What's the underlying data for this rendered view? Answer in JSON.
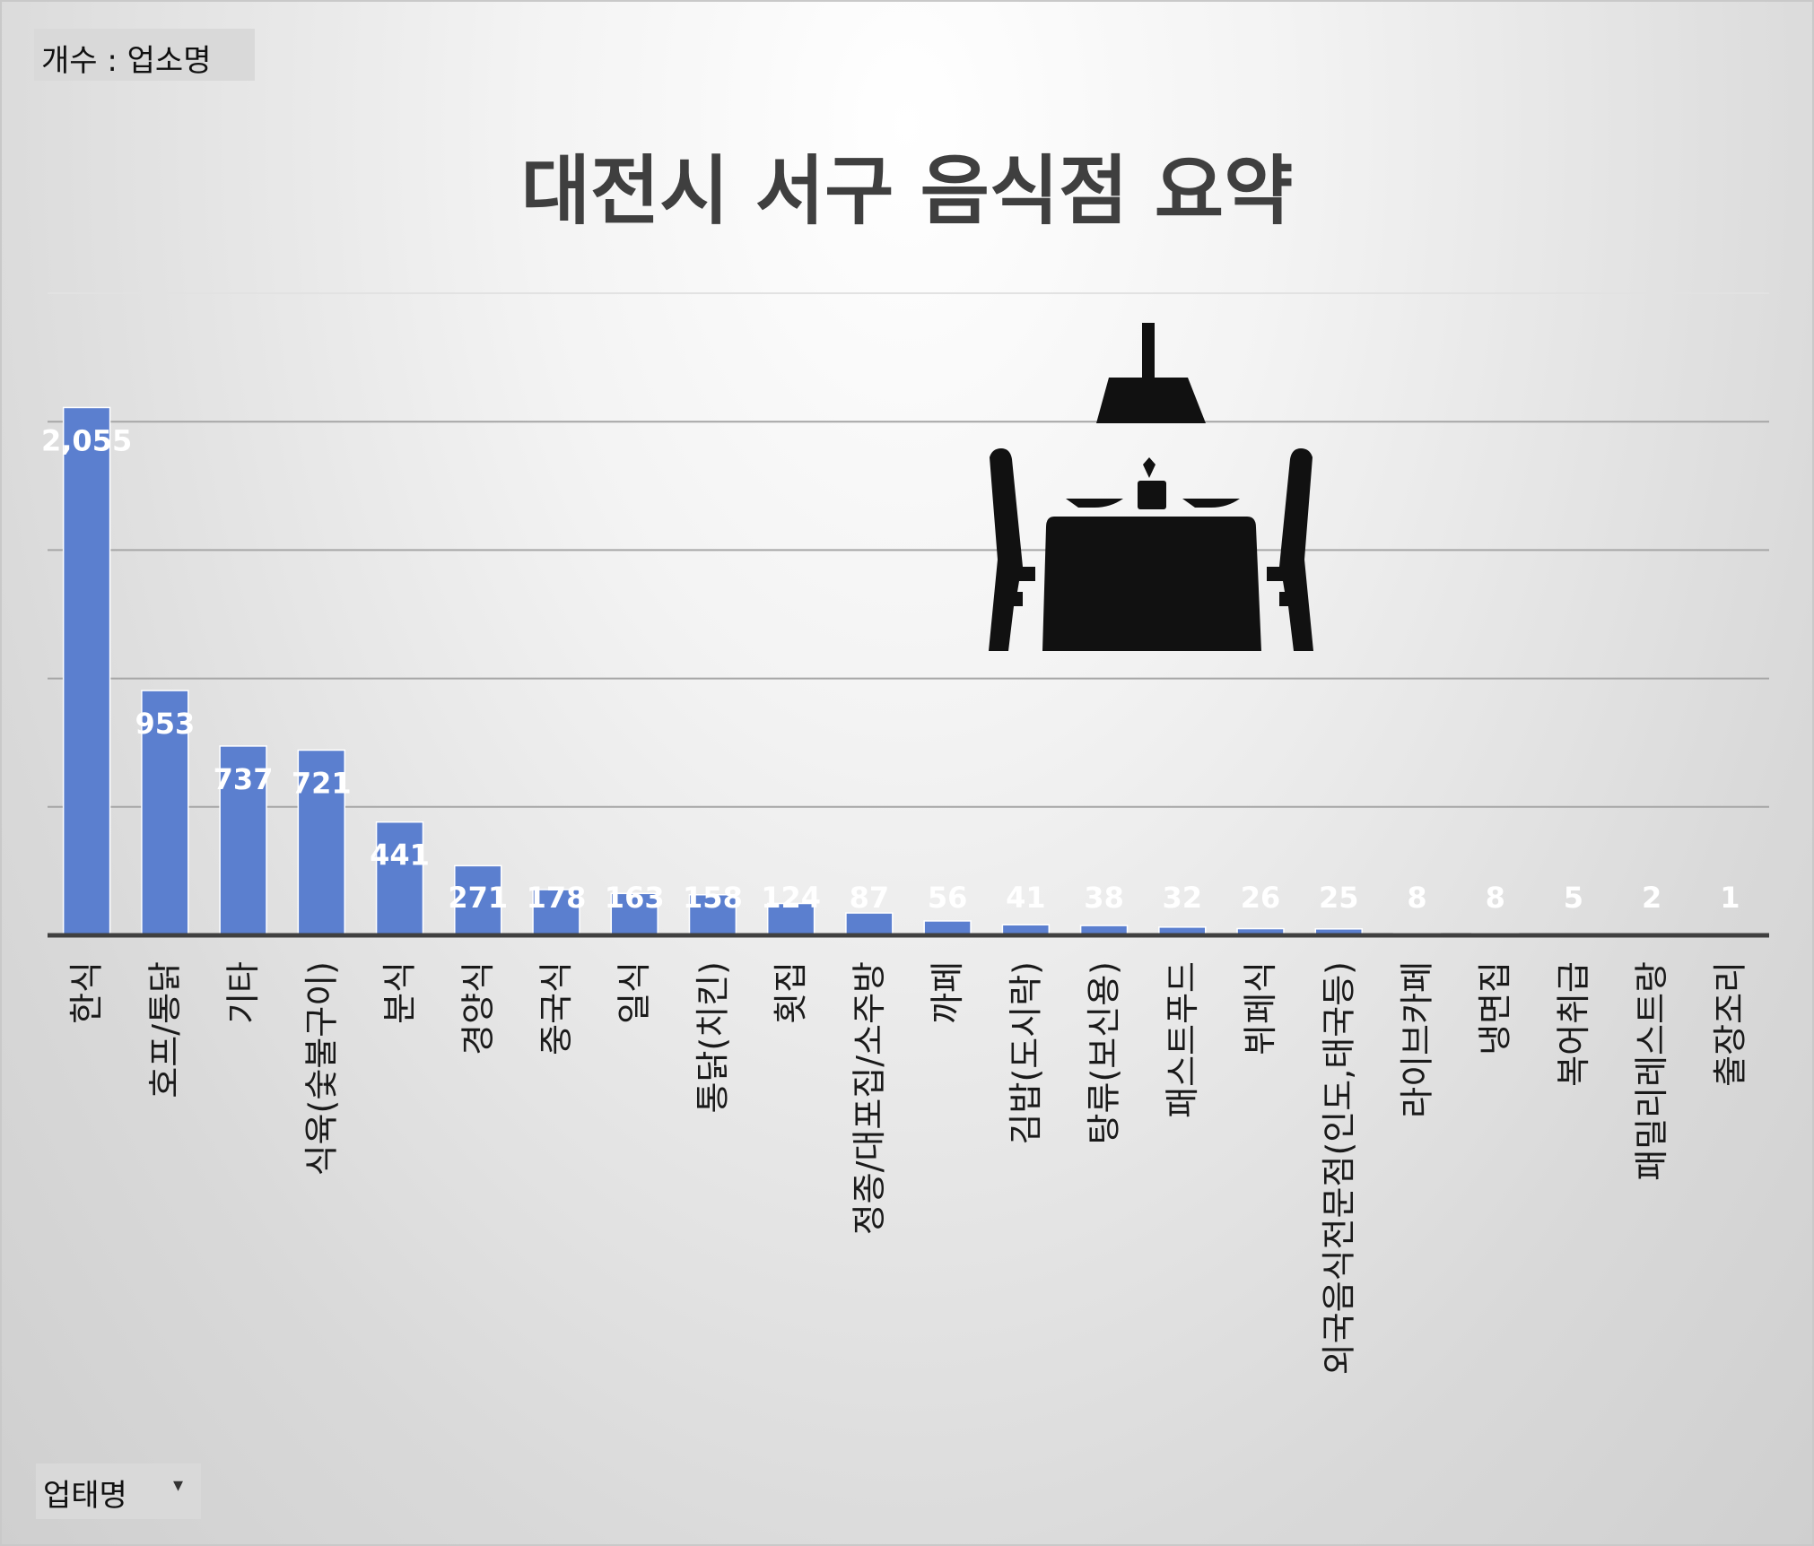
{
  "value_field_button": {
    "label": "개수 : 업소명"
  },
  "axis_field_button": {
    "label": "업태명",
    "arrow": "▾"
  },
  "dining_icon": {
    "name": "restaurant-table-icon"
  },
  "chart_data": {
    "type": "bar",
    "title": "대전시 서구 음식점 요약",
    "xlabel": "",
    "ylabel": "",
    "ylim": [
      0,
      2500
    ],
    "grid": true,
    "legend": "none",
    "bar_color": "#5b7fcf",
    "categories": [
      "한식",
      "호프/통닭",
      "기타",
      "식육(숯불구이)",
      "분식",
      "경양식",
      "중국식",
      "일식",
      "통닭(치킨)",
      "횟집",
      "정종/대포집/소주방",
      "까페",
      "김밥(도시락)",
      "탕류(보신용)",
      "패스트푸드",
      "뷔페식",
      "외국음식전문점(인도,태국등)",
      "라이브카페",
      "냉면집",
      "복어취급",
      "패밀리레스트랑",
      "출장조리"
    ],
    "values": [
      2055,
      953,
      737,
      721,
      441,
      271,
      178,
      163,
      158,
      124,
      87,
      56,
      41,
      38,
      32,
      26,
      25,
      8,
      8,
      5,
      2,
      1
    ],
    "data_labels": [
      "2,055",
      "953",
      "737",
      "721",
      "441",
      "271",
      "178",
      "163",
      "158",
      "124",
      "87",
      "56",
      "41",
      "38",
      "32",
      "26",
      "25",
      "8",
      "8",
      "5",
      "2",
      "1"
    ]
  }
}
